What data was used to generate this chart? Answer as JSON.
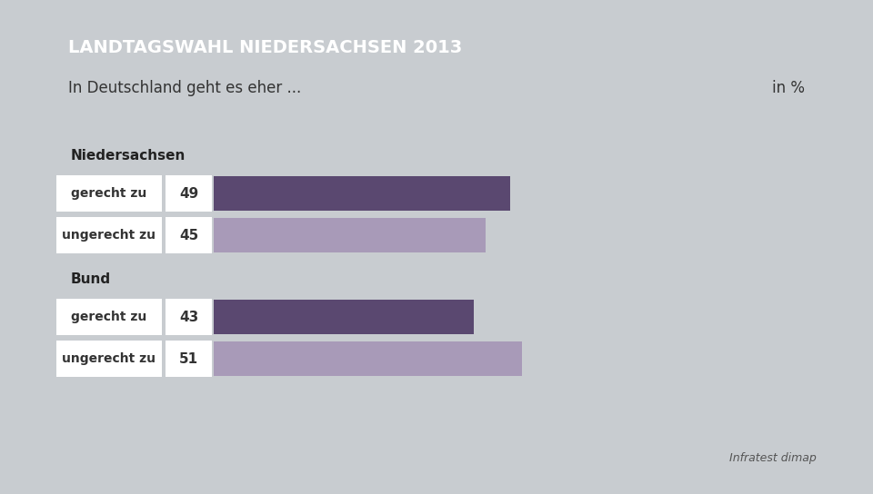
{
  "title": "LANDTAGSWAHL NIEDERSACHSEN 2013",
  "subtitle": "In Deutschland geht es eher ...",
  "subtitle_right": "in %",
  "source": "Infratest dimap",
  "title_bg": "#1a3a6b",
  "title_color": "#ffffff",
  "subtitle_bg": "#ffffff",
  "subtitle_color": "#333333",
  "background_color": "#c8ccd0",
  "chart_bg": "#ffffff",
  "bar_row_bg": "#ffffff",
  "group_row_bg": "#ffffff",
  "dark_bar_color": "#5a4870",
  "light_bar_color": "#a89ab8",
  "groups": [
    {
      "group_label": "Niedersachsen",
      "bars": [
        {
          "label": "gerecht zu",
          "value": 49,
          "color": "#5a4870"
        },
        {
          "label": "ungerecht zu",
          "value": 45,
          "color": "#a89ab8"
        }
      ]
    },
    {
      "group_label": "Bund",
      "bars": [
        {
          "label": "gerecht zu",
          "value": 43,
          "color": "#5a4870"
        },
        {
          "label": "ungerecht zu",
          "value": 51,
          "color": "#a89ab8"
        }
      ]
    }
  ],
  "figsize": [
    9.6,
    5.44
  ],
  "dpi": 100
}
